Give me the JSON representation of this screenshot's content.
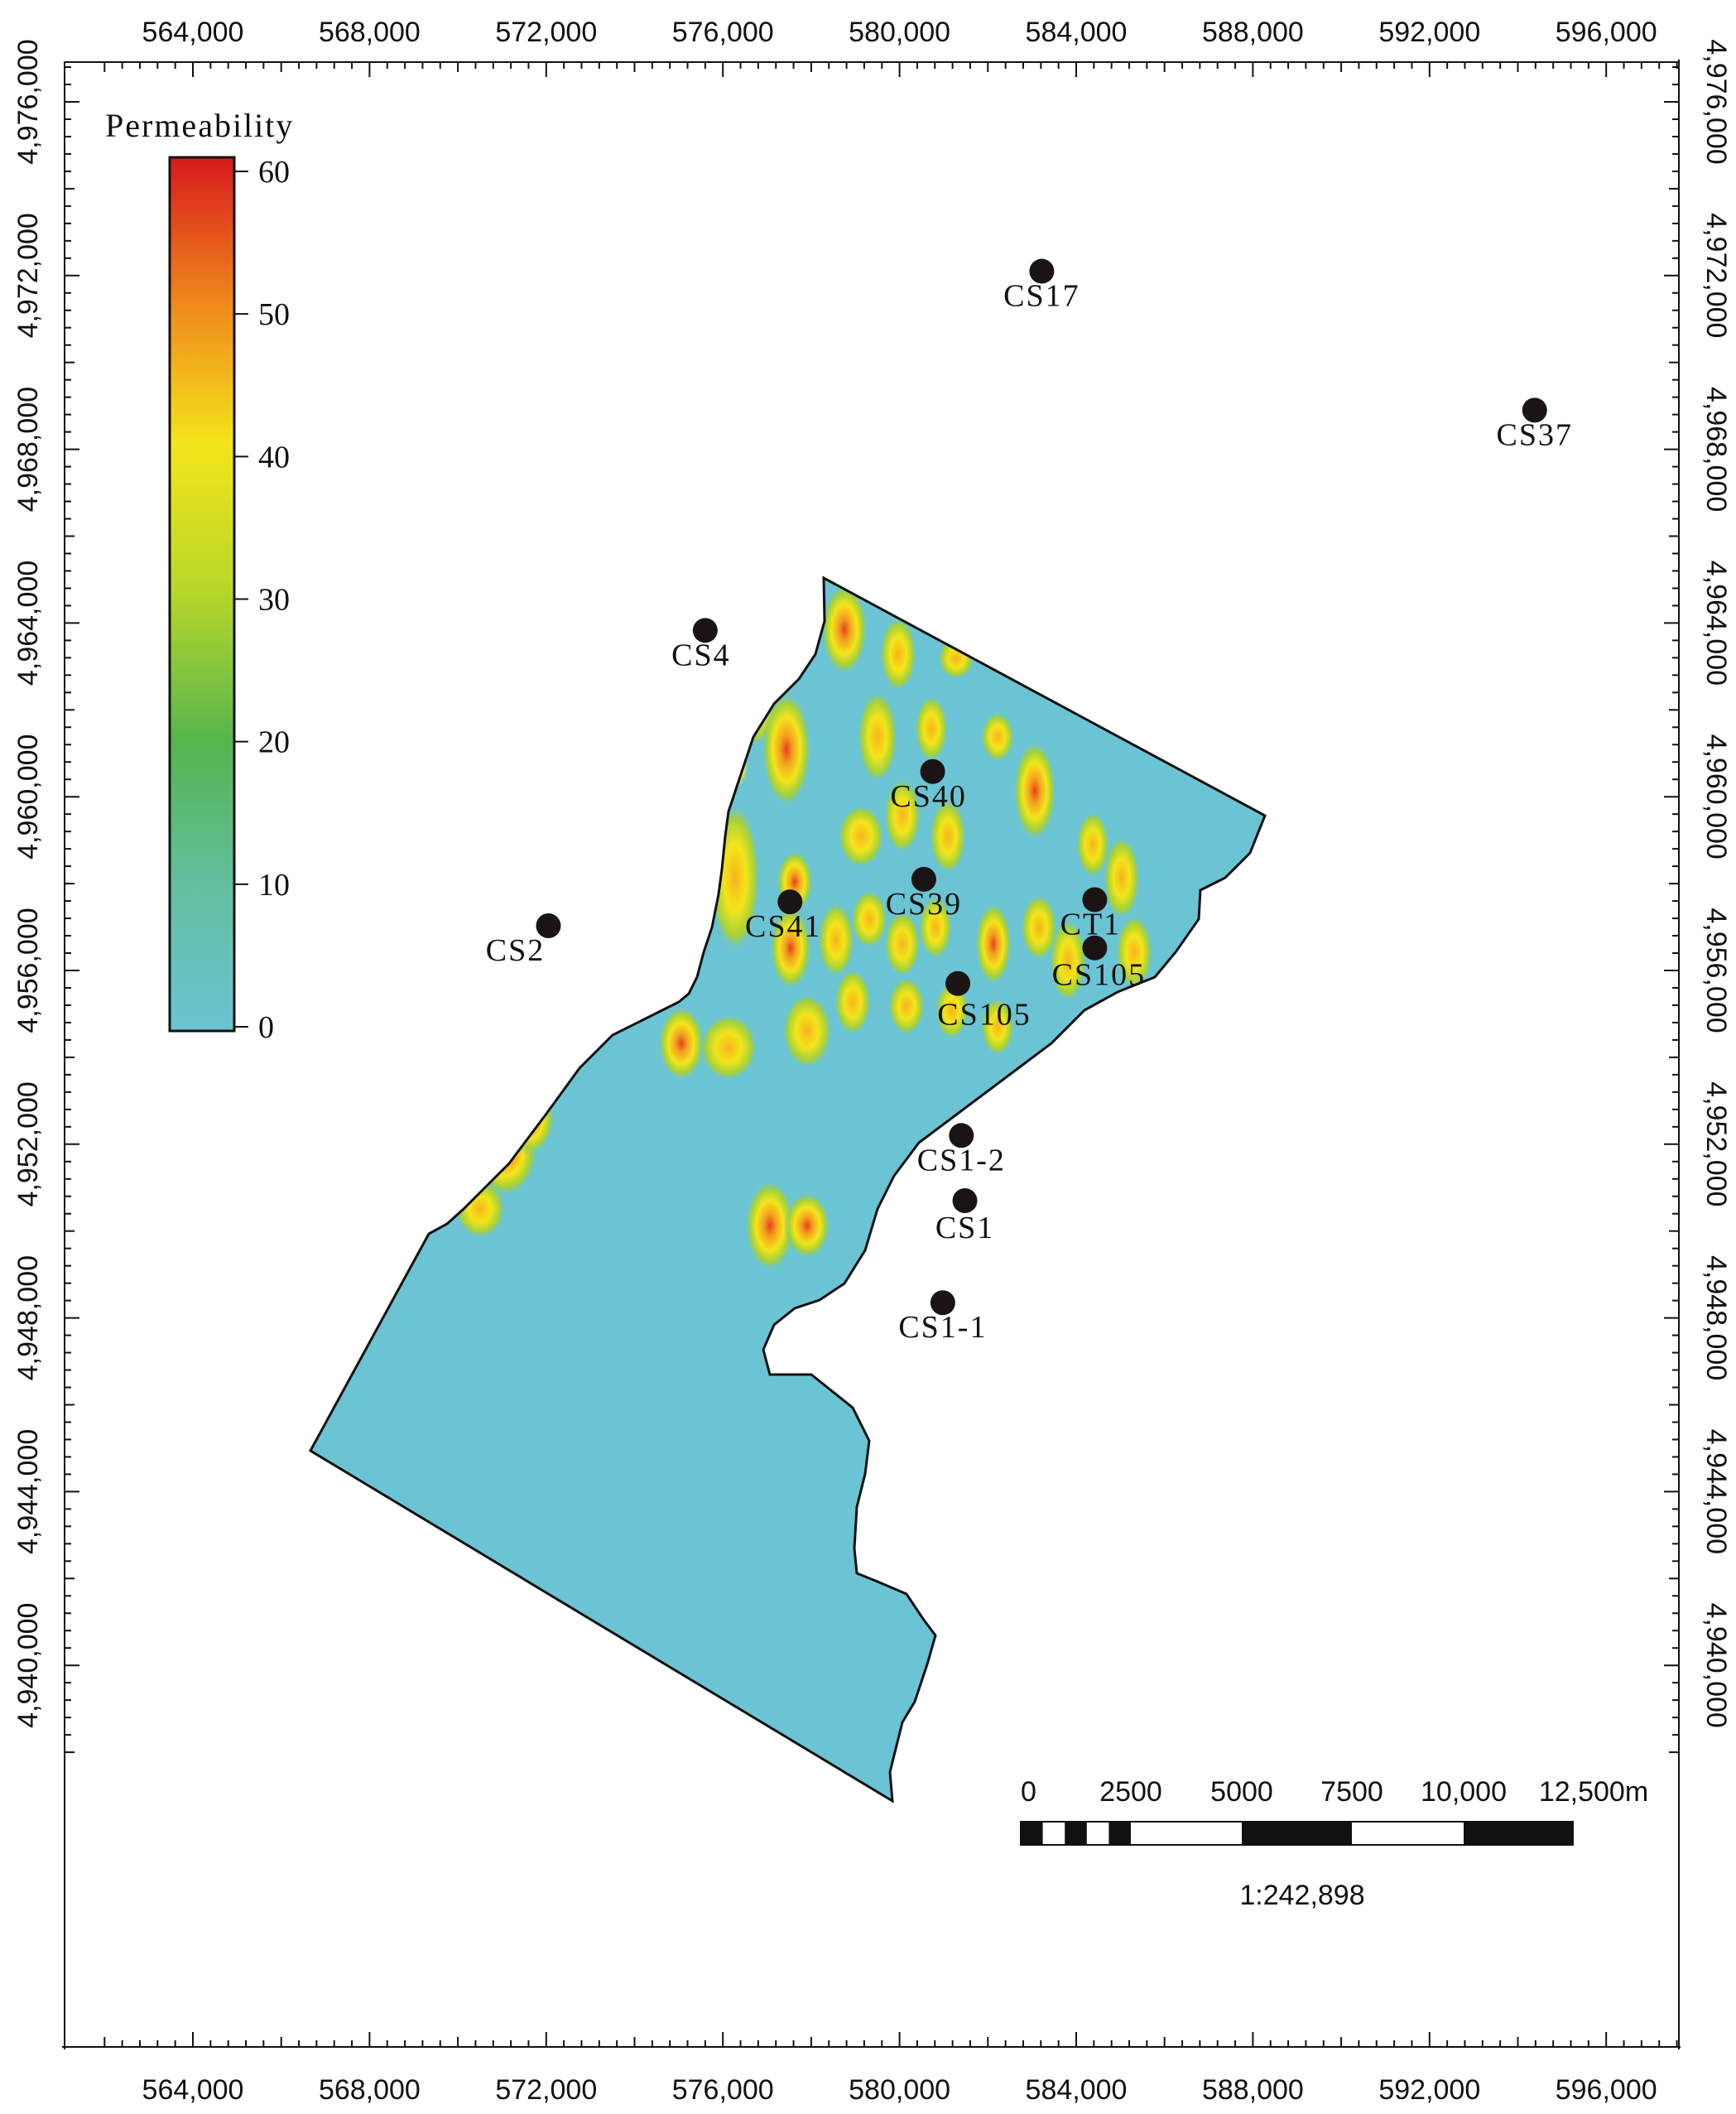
{
  "axes": {
    "x_ticks": [
      "564,000",
      "568,000",
      "572,000",
      "576,000",
      "580,000",
      "584,000",
      "588,000",
      "592,000",
      "596,000"
    ],
    "y_ticks": [
      "4,976,000",
      "4,972,000",
      "4,968,000",
      "4,964,000",
      "4,960,000",
      "4,956,000",
      "4,952,000",
      "4,948,000",
      "4,944,000",
      "4,940,000"
    ]
  },
  "legend": {
    "title": "Permeability",
    "ticks": [
      "60",
      "50",
      "40",
      "30",
      "20",
      "10",
      "0"
    ],
    "colors": [
      "#d7191c",
      "#f08a1c",
      "#f4e51a",
      "#b6d62a",
      "#55b54e",
      "#62bf9e",
      "#6bc4d4"
    ]
  },
  "wells": [
    {
      "name": "CS17",
      "x": 583220,
      "y": 4972100
    },
    {
      "name": "CS37",
      "x": 594380,
      "y": 4968900
    },
    {
      "name": "CS4",
      "x": 575600,
      "y": 4963830
    },
    {
      "name": "CS40",
      "x": 580750,
      "y": 4960580
    },
    {
      "name": "CS41",
      "x": 577520,
      "y": 4957580
    },
    {
      "name": "CS39",
      "x": 580550,
      "y": 4958100
    },
    {
      "name": "CS2",
      "x": 572050,
      "y": 4957030
    },
    {
      "name": "CT1",
      "x": 584420,
      "y": 4957630
    },
    {
      "name": "CS105",
      "x": 584420,
      "y": 4956520
    },
    {
      "name": "CS105",
      "x": 581320,
      "y": 4955700
    },
    {
      "name": "CS1-2",
      "x": 581400,
      "y": 4952200
    },
    {
      "name": "CS1",
      "x": 581480,
      "y": 4950700
    },
    {
      "name": "CS1-1",
      "x": 580980,
      "y": 4948350
    }
  ],
  "scale_bar": {
    "labels": [
      "0",
      "2500",
      "5000",
      "7500",
      "10,000",
      "12,500m"
    ],
    "ratio": "1:242,898"
  },
  "colors": {
    "basin_fill": "#6bc4d4",
    "high": "#d7191c",
    "frame": "#111111"
  }
}
